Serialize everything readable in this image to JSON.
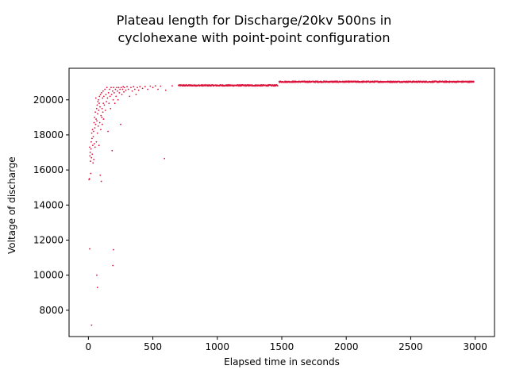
{
  "chart_data": {
    "type": "scatter",
    "title_lines": [
      "Plateau length for Discharge/20kv 500ns in",
      "cyclohexane with point-point configuration"
    ],
    "xlabel": "Elapsed time in seconds",
    "ylabel": "Voltage of discharge",
    "xlim": [
      -150,
      3150
    ],
    "ylim": [
      6500,
      21800
    ],
    "xticks": [
      0,
      500,
      1000,
      1500,
      2000,
      2500,
      3000
    ],
    "yticks": [
      8000,
      10000,
      12000,
      14000,
      16000,
      18000,
      20000
    ],
    "grid": false,
    "marker_color": "#dc143c",
    "series": [
      {
        "points": [
          [
            5,
            15450
          ],
          [
            8,
            15500
          ],
          [
            10,
            17300
          ],
          [
            12,
            16800
          ],
          [
            14,
            17000
          ],
          [
            16,
            16500
          ],
          [
            18,
            15800
          ],
          [
            20,
            17200
          ],
          [
            22,
            17600
          ],
          [
            24,
            16700
          ],
          [
            26,
            18100
          ],
          [
            28,
            17800
          ],
          [
            30,
            16900
          ],
          [
            32,
            18300
          ],
          [
            34,
            17400
          ],
          [
            36,
            16400
          ],
          [
            38,
            17900
          ],
          [
            40,
            18200
          ],
          [
            42,
            16600
          ],
          [
            44,
            18700
          ],
          [
            46,
            17500
          ],
          [
            48,
            19000
          ],
          [
            50,
            18400
          ],
          [
            52,
            17300
          ],
          [
            54,
            19300
          ],
          [
            56,
            18600
          ],
          [
            58,
            20100
          ],
          [
            60,
            18900
          ],
          [
            62,
            17600
          ],
          [
            64,
            19500
          ],
          [
            66,
            18800
          ],
          [
            68,
            19700
          ],
          [
            70,
            18100
          ],
          [
            72,
            19200
          ],
          [
            74,
            19900
          ],
          [
            76,
            18500
          ],
          [
            78,
            20000
          ],
          [
            80,
            19400
          ],
          [
            82,
            17400
          ],
          [
            84,
            19800
          ],
          [
            86,
            20200
          ],
          [
            88,
            18700
          ],
          [
            90,
            19600
          ],
          [
            92,
            15700
          ],
          [
            94,
            20300
          ],
          [
            96,
            18300
          ],
          [
            98,
            19100
          ],
          [
            100,
            15350
          ],
          [
            102,
            20400
          ],
          [
            104,
            19000
          ],
          [
            106,
            19500
          ],
          [
            108,
            18600
          ],
          [
            110,
            20100
          ],
          [
            112,
            19300
          ],
          [
            114,
            20500
          ],
          [
            116,
            19800
          ],
          [
            118,
            18900
          ],
          [
            120,
            20200
          ],
          [
            124,
            19700
          ],
          [
            128,
            20600
          ],
          [
            132,
            19400
          ],
          [
            136,
            20300
          ],
          [
            140,
            19900
          ],
          [
            144,
            20700
          ],
          [
            148,
            20100
          ],
          [
            152,
            18200
          ],
          [
            156,
            20400
          ],
          [
            160,
            19800
          ],
          [
            164,
            20600
          ],
          [
            168,
            20200
          ],
          [
            172,
            19500
          ],
          [
            176,
            20700
          ],
          [
            180,
            20300
          ],
          [
            184,
            17100
          ],
          [
            188,
            20500
          ],
          [
            192,
            20000
          ],
          [
            196,
            20700
          ],
          [
            200,
            20400
          ],
          [
            205,
            19800
          ],
          [
            210,
            20600
          ],
          [
            215,
            20200
          ],
          [
            220,
            20700
          ],
          [
            225,
            20500
          ],
          [
            230,
            20000
          ],
          [
            235,
            20700
          ],
          [
            240,
            20400
          ],
          [
            245,
            20600
          ],
          [
            250,
            18600
          ],
          [
            255,
            20700
          ],
          [
            260,
            20300
          ],
          [
            265,
            20600
          ],
          [
            270,
            20750
          ],
          [
            275,
            20450
          ],
          [
            280,
            20700
          ],
          [
            290,
            20550
          ],
          [
            300,
            20750
          ],
          [
            310,
            20600
          ],
          [
            320,
            20200
          ],
          [
            330,
            20700
          ],
          [
            340,
            20500
          ],
          [
            350,
            20750
          ],
          [
            360,
            20600
          ],
          [
            370,
            20300
          ],
          [
            380,
            20700
          ],
          [
            390,
            20550
          ],
          [
            400,
            20750
          ],
          [
            420,
            20650
          ],
          [
            440,
            20750
          ],
          [
            460,
            20600
          ],
          [
            480,
            20780
          ],
          [
            500,
            20700
          ],
          [
            520,
            20800
          ],
          [
            540,
            20600
          ],
          [
            560,
            20780
          ],
          [
            600,
            20550
          ],
          [
            650,
            20800
          ],
          [
            700,
            20830
          ],
          [
            750,
            20800
          ],
          [
            10,
            11500
          ],
          [
            25,
            7150
          ],
          [
            65,
            10000
          ],
          [
            70,
            9300
          ],
          [
            190,
            10550
          ],
          [
            195,
            11450
          ],
          [
            590,
            16650
          ]
        ]
      }
    ],
    "plateau_segments": [
      {
        "x_start": 700,
        "x_end": 1470,
        "y": 20820,
        "spread": 70
      },
      {
        "x_start": 1480,
        "x_end": 2990,
        "y": 21030,
        "spread": 70
      }
    ]
  }
}
